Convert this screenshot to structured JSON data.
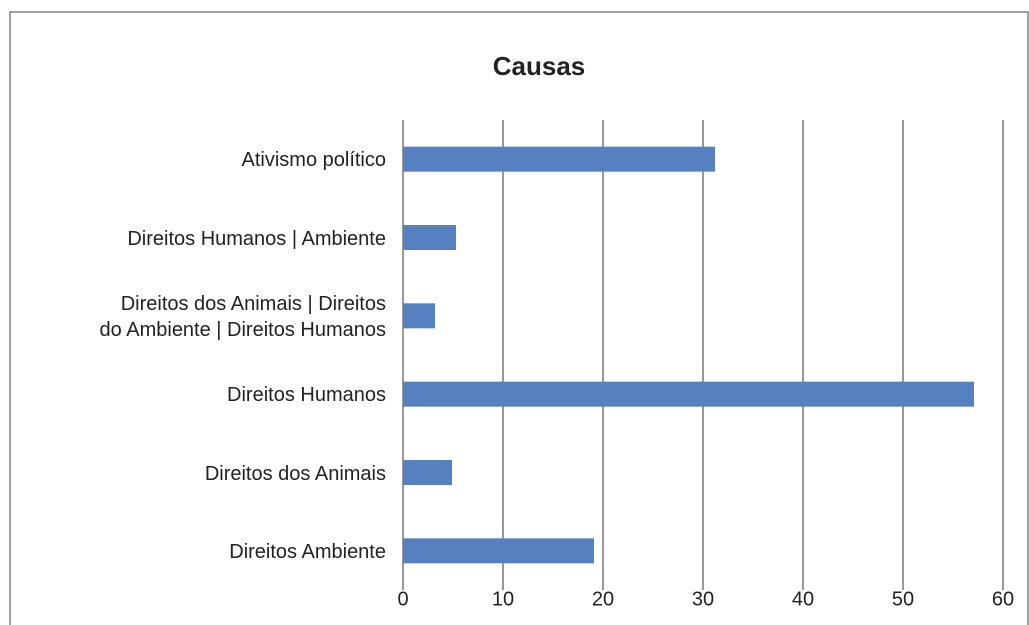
{
  "chart_data": {
    "type": "barh",
    "title": "Causas",
    "categories": [
      "Ativismo político",
      "Direitos Humanos | Ambiente",
      "Direitos dos Animais | Direitos do Ambiente | Direitos Humanos",
      "Direitos Humanos",
      "Direitos dos Animais",
      "Direitos Ambiente"
    ],
    "values": [
      31.2,
      5.3,
      3.2,
      57.1,
      4.9,
      19.1
    ],
    "color": "#5681c0",
    "xlim": [
      0,
      60
    ],
    "xticks": [
      0,
      10,
      20,
      30,
      40,
      50,
      60
    ],
    "grid": true
  }
}
